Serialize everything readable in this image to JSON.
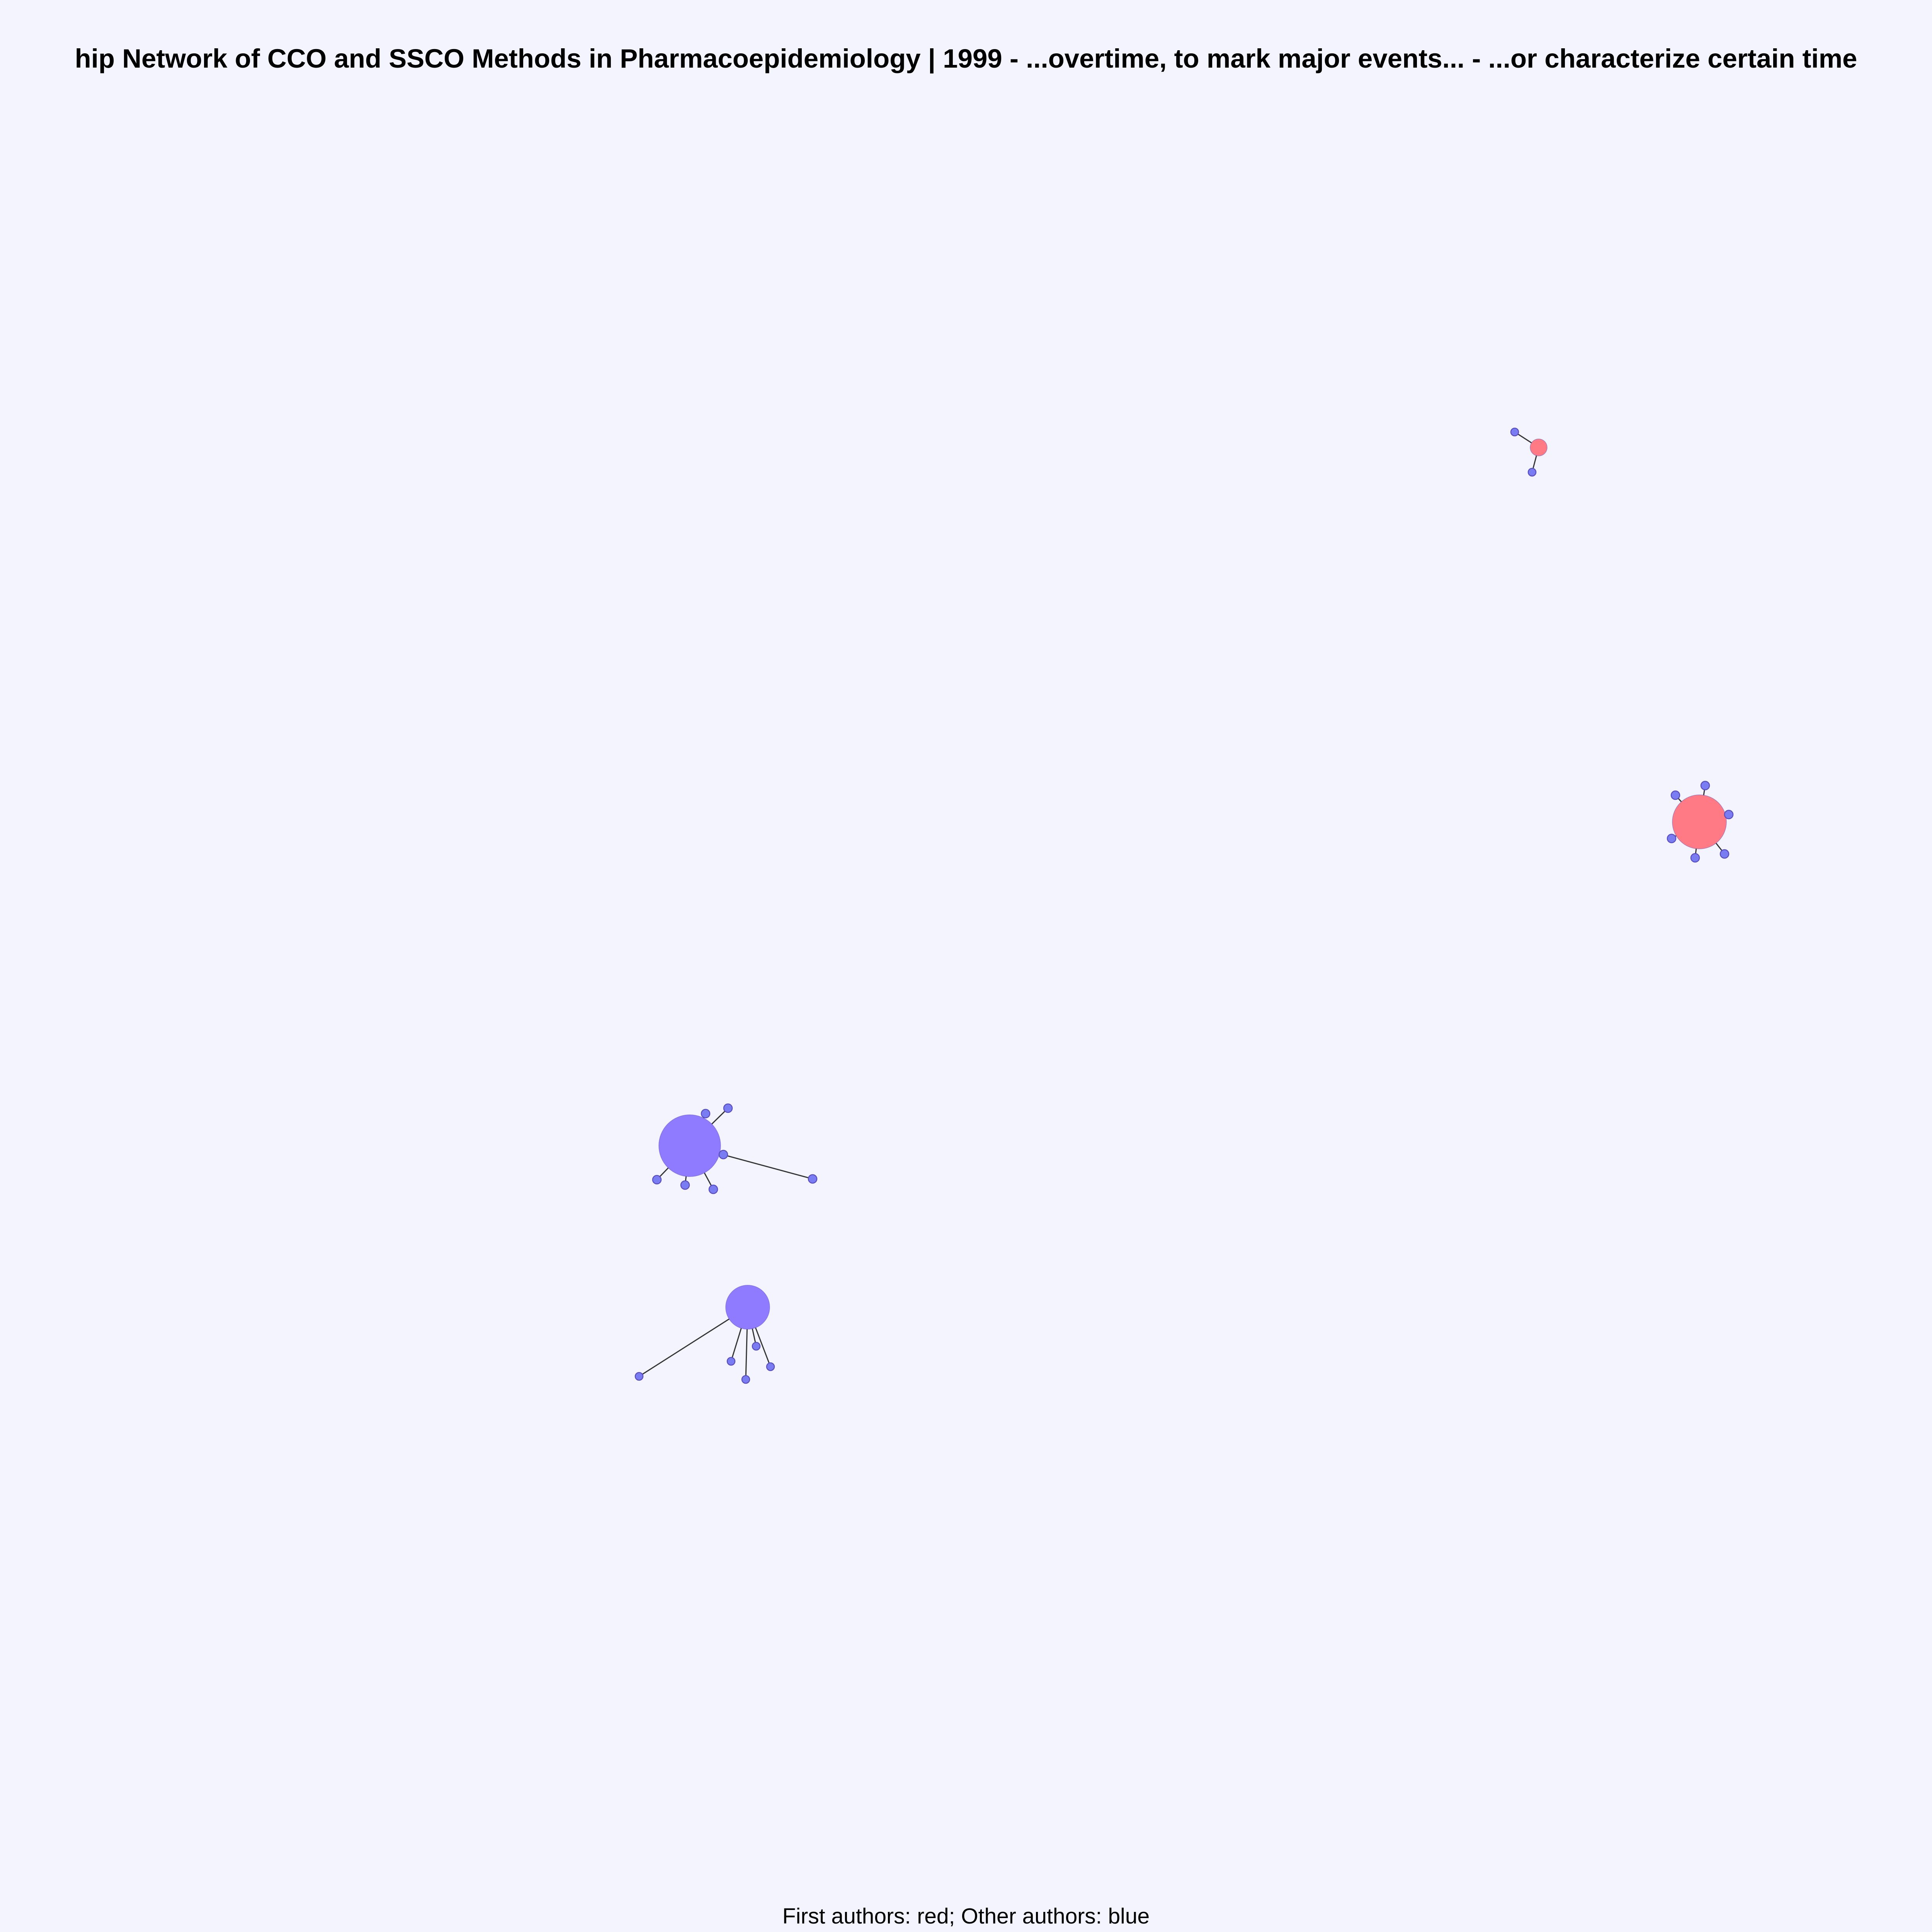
{
  "figure": {
    "title": "hip Network of CCO and SSCO Methods in Pharmacoepidemiology |  1999  - ...overtime, to mark major events...  - ...or characterize certain time",
    "caption": "First authors: red; Other authors: blue"
  },
  "colors": {
    "background": "#f3f4fd",
    "first_author_node": "#ff7a85",
    "other_author_node": "#8f7bff",
    "small_node": "#7a7cf2",
    "node_stroke": "#5a4fc0",
    "edge": "#333333"
  },
  "clusters": [
    {
      "name": "cluster-top-right",
      "hub_role": "first-author",
      "leaf_count": 2
    },
    {
      "name": "cluster-right",
      "hub_role": "first-author",
      "leaf_count": 6
    },
    {
      "name": "cluster-left-upper",
      "hub_role": "other-author",
      "leaf_count": 7
    },
    {
      "name": "cluster-left-lower",
      "hub_role": "other-author",
      "leaf_count": 5
    }
  ]
}
